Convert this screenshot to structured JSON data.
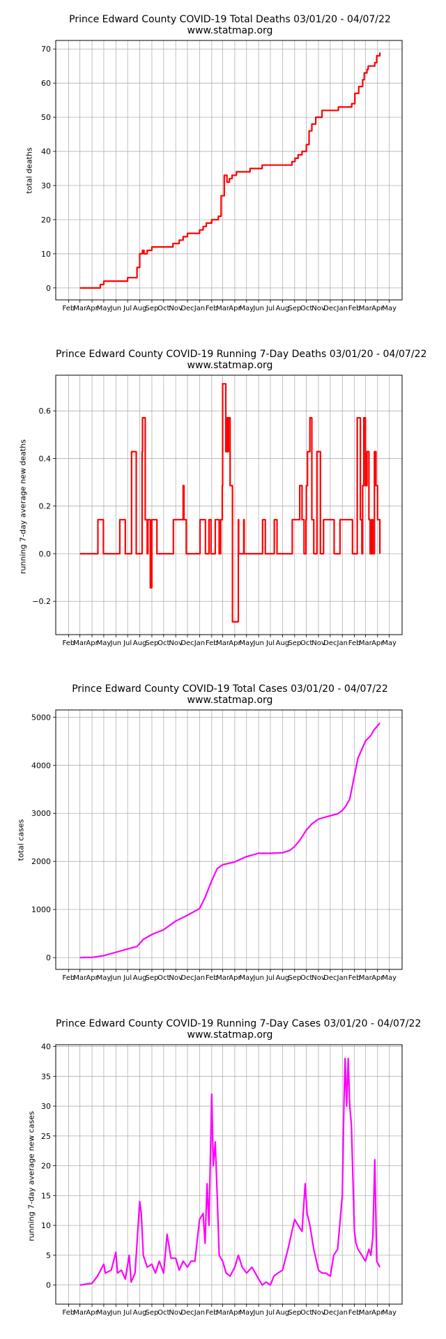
{
  "charts": [
    {
      "title": "Prince Edward County COVID-19 Total Deaths 03/01/20 - 04/07/22",
      "subtitle": "www.statmap.org",
      "ylabel": "total deaths"
    },
    {
      "title": "Prince Edward County COVID-19 Running 7-Day Deaths 03/01/20 - 04/07/22",
      "subtitle": "www.statmap.org",
      "ylabel": "running 7-day average new deaths"
    },
    {
      "title": "Prince Edward County COVID-19 Total Cases 03/01/20 - 04/07/22",
      "subtitle": "www.statmap.org",
      "ylabel": "total cases"
    },
    {
      "title": "Prince Edward County COVID-19 Running 7-Day Cases 03/01/20 - 04/07/22",
      "subtitle": "www.statmap.org",
      "ylabel": "running 7-day average new cases"
    }
  ],
  "chart_data": [
    {
      "type": "line",
      "title": "Prince Edward County COVID-19 Total Deaths 03/01/20 - 04/07/22",
      "subtitle": "www.statmap.org",
      "ylabel": "total deaths",
      "x_tick_labels": [
        "Feb",
        "Mar",
        "Apr",
        "May",
        "Jun",
        "Jul",
        "Aug",
        "Sep",
        "Oct",
        "Nov",
        "Dec",
        "Jan",
        "Feb",
        "Mar",
        "Apr",
        "May",
        "Jun",
        "Jul",
        "Aug",
        "Sep",
        "Oct",
        "Nov",
        "Dec",
        "Jan",
        "Feb",
        "Mar",
        "Apr",
        "May"
      ],
      "x_range": [
        "2020-02-01",
        "2022-05-01"
      ],
      "y_ticks": [
        0,
        10,
        20,
        30,
        40,
        50,
        60,
        70
      ],
      "ylim": [
        -3.5,
        72.5
      ],
      "grid": true,
      "color": "#ff0000",
      "series": [
        {
          "x": [
            "2020-03-01",
            "2020-04-15",
            "2020-04-22",
            "2020-05-01",
            "2020-06-10",
            "2020-07-01",
            "2020-07-25",
            "2020-08-01",
            "2020-08-08",
            "2020-08-12",
            "2020-08-20",
            "2020-09-01",
            "2020-10-25",
            "2020-11-10",
            "2020-11-20",
            "2020-12-01",
            "2021-01-01",
            "2021-01-10",
            "2021-01-18",
            "2021-02-01",
            "2021-02-18",
            "2021-02-25",
            "2021-03-05",
            "2021-03-12",
            "2021-03-18",
            "2021-03-25",
            "2021-04-05",
            "2021-04-15",
            "2021-04-25",
            "2021-05-10",
            "2021-06-10",
            "2021-07-10",
            "2021-08-25",
            "2021-09-02",
            "2021-09-10",
            "2021-09-20",
            "2021-10-01",
            "2021-10-08",
            "2021-10-15",
            "2021-10-25",
            "2021-11-10",
            "2021-12-15",
            "2021-12-22",
            "2022-01-25",
            "2022-02-02",
            "2022-02-12",
            "2022-02-22",
            "2022-02-26",
            "2022-03-05",
            "2022-03-08",
            "2022-03-12",
            "2022-03-25",
            "2022-03-30",
            "2022-04-07"
          ],
          "y": [
            0,
            0,
            1,
            2,
            2,
            3,
            6,
            10,
            11,
            10,
            11,
            12,
            13,
            14,
            15,
            16,
            17,
            18,
            19,
            20,
            21,
            27,
            33,
            31,
            32,
            33,
            34,
            34,
            34,
            35,
            36,
            36,
            37,
            38,
            39,
            40,
            42,
            46,
            48,
            50,
            52,
            52,
            53,
            54,
            57,
            59,
            61,
            63,
            64,
            65,
            65,
            66,
            68,
            69
          ]
        }
      ]
    },
    {
      "type": "line",
      "title": "Prince Edward County COVID-19 Running 7-Day Deaths 03/01/20 - 04/07/22",
      "subtitle": "www.statmap.org",
      "ylabel": "running 7-day average new deaths",
      "x_tick_labels": [
        "Feb",
        "Mar",
        "Apr",
        "May",
        "Jun",
        "Jul",
        "Aug",
        "Sep",
        "Oct",
        "Nov",
        "Dec",
        "Jan",
        "Feb",
        "Mar",
        "Apr",
        "May",
        "Jun",
        "Jul",
        "Aug",
        "Sep",
        "Oct",
        "Nov",
        "Dec",
        "Jan",
        "Feb",
        "Mar",
        "Apr",
        "May"
      ],
      "x_range": [
        "2020-02-01",
        "2022-05-01"
      ],
      "y_ticks": [
        -0.2,
        0.0,
        0.2,
        0.4,
        0.6
      ],
      "y_tick_labels": [
        "−0.2",
        "0.0",
        "0.2",
        "0.4",
        "0.6"
      ],
      "ylim": [
        -0.34,
        0.75
      ],
      "grid": true,
      "color": "#ff0000",
      "series": [
        {
          "x": [
            "2020-03-01",
            "2020-04-15",
            "2020-04-16",
            "2020-04-29",
            "2020-04-30",
            "2020-06-10",
            "2020-06-11",
            "2020-06-24",
            "2020-06-25",
            "2020-07-10",
            "2020-07-11",
            "2020-07-22",
            "2020-07-23",
            "2020-08-05",
            "2020-08-07",
            "2020-08-08",
            "2020-08-13",
            "2020-08-15",
            "2020-08-20",
            "2020-08-22",
            "2020-08-28",
            "2020-09-01",
            "2020-09-10",
            "2020-09-14",
            "2020-09-22",
            "2020-10-25",
            "2020-10-26",
            "2020-11-05",
            "2020-11-15",
            "2020-11-20",
            "2020-11-22",
            "2020-11-28",
            "2020-12-01",
            "2021-01-01",
            "2021-01-02",
            "2021-01-15",
            "2021-01-16",
            "2021-01-25",
            "2021-01-30",
            "2021-02-10",
            "2021-02-20",
            "2021-02-24",
            "2021-02-28",
            "2021-03-01",
            "2021-03-08",
            "2021-03-09",
            "2021-03-10",
            "2021-03-13",
            "2021-03-16",
            "2021-03-20",
            "2021-03-26",
            "2021-03-27",
            "2021-04-10",
            "2021-04-11",
            "2021-04-24",
            "2021-04-25",
            "2021-06-10",
            "2021-06-11",
            "2021-06-18",
            "2021-07-10",
            "2021-07-11",
            "2021-07-18",
            "2021-08-25",
            "2021-08-26",
            "2021-09-10",
            "2021-09-14",
            "2021-09-20",
            "2021-09-25",
            "2021-09-30",
            "2021-10-01",
            "2021-10-04",
            "2021-10-10",
            "2021-10-15",
            "2021-10-20",
            "2021-10-28",
            "2021-11-01",
            "2021-11-06",
            "2021-11-14",
            "2021-12-10",
            "2021-12-11",
            "2021-12-25",
            "2021-12-26",
            "2022-01-25",
            "2022-01-27",
            "2022-02-05",
            "2022-02-08",
            "2022-02-13",
            "2022-02-16",
            "2022-02-20",
            "2022-02-22",
            "2022-02-25",
            "2022-03-01",
            "2022-03-05",
            "2022-03-10",
            "2022-03-13",
            "2022-03-17",
            "2022-03-20",
            "2022-03-24",
            "2022-03-28",
            "2022-04-01",
            "2022-04-07"
          ],
          "y": [
            0,
            0,
            0.143,
            0.143,
            0,
            0,
            0.143,
            0.143,
            0,
            0,
            0.429,
            0.429,
            0,
            0,
            0.429,
            0.571,
            0.571,
            0.143,
            0,
            0.143,
            -0.143,
            0.143,
            0.143,
            0,
            0,
            0,
            0.143,
            0.143,
            0.143,
            0.286,
            0.143,
            0,
            0,
            0,
            0.143,
            0.143,
            0,
            0.143,
            0,
            0.143,
            0,
            0.143,
            0.286,
            0.714,
            0.714,
            0.429,
            0.571,
            0.429,
            0.571,
            0.286,
            -0.286,
            -0.286,
            0.143,
            0,
            0.143,
            0,
            0,
            0.143,
            0,
            0,
            0.143,
            0,
            0,
            0.143,
            0.143,
            0.286,
            0.143,
            0,
            0.143,
            0.286,
            0.429,
            0.571,
            0.143,
            0,
            0.429,
            0.429,
            0,
            0.143,
            0.143,
            0,
            0,
            0.143,
            0.143,
            0,
            0,
            0.571,
            0.571,
            0.143,
            0,
            0.286,
            0.571,
            0.286,
            0.429,
            0.143,
            0,
            0.143,
            0,
            0.429,
            0.286,
            0.143,
            0
          ]
        }
      ]
    },
    {
      "type": "line",
      "title": "Prince Edward County COVID-19 Total Cases 03/01/20 - 04/07/22",
      "subtitle": "www.statmap.org",
      "ylabel": "total cases",
      "x_tick_labels": [
        "Feb",
        "Mar",
        "Apr",
        "May",
        "Jun",
        "Jul",
        "Aug",
        "Sep",
        "Oct",
        "Nov",
        "Dec",
        "Jan",
        "Feb",
        "Mar",
        "Apr",
        "May",
        "Jun",
        "Jul",
        "Aug",
        "Sep",
        "Oct",
        "Nov",
        "Dec",
        "Jan",
        "Feb",
        "Mar",
        "Apr",
        "May"
      ],
      "x_range": [
        "2020-02-01",
        "2022-05-01"
      ],
      "y_ticks": [
        0,
        1000,
        2000,
        3000,
        4000,
        5000
      ],
      "ylim": [
        -245,
        5150
      ],
      "grid": true,
      "color": "#ff00ff",
      "series": [
        {
          "x": [
            "2020-03-01",
            "2020-04-01",
            "2020-05-01",
            "2020-06-01",
            "2020-07-01",
            "2020-07-25",
            "2020-08-10",
            "2020-09-01",
            "2020-10-01",
            "2020-11-01",
            "2020-12-01",
            "2021-01-01",
            "2021-01-15",
            "2021-02-01",
            "2021-02-15",
            "2021-03-01",
            "2021-04-01",
            "2021-05-01",
            "2021-06-01",
            "2021-07-01",
            "2021-08-01",
            "2021-08-20",
            "2021-09-01",
            "2021-09-15",
            "2021-10-01",
            "2021-10-15",
            "2021-11-01",
            "2021-12-01",
            "2021-12-20",
            "2022-01-01",
            "2022-01-10",
            "2022-01-20",
            "2022-01-31",
            "2022-02-10",
            "2022-03-01",
            "2022-03-15",
            "2022-03-22",
            "2022-04-07"
          ],
          "y": [
            0,
            5,
            40,
            110,
            180,
            230,
            380,
            480,
            580,
            760,
            880,
            1020,
            1250,
            1600,
            1850,
            1930,
            1990,
            2100,
            2170,
            2170,
            2180,
            2230,
            2310,
            2450,
            2650,
            2780,
            2880,
            2950,
            2990,
            3060,
            3150,
            3300,
            3750,
            4150,
            4500,
            4620,
            4720,
            4880
          ]
        }
      ]
    },
    {
      "type": "line",
      "title": "Prince Edward County COVID-19 Running 7-Day Cases 03/01/20 - 04/07/22",
      "subtitle": "www.statmap.org",
      "ylabel": "running 7-day average new cases",
      "x_tick_labels": [
        "Feb",
        "Mar",
        "Apr",
        "May",
        "Jun",
        "Jul",
        "Aug",
        "Sep",
        "Oct",
        "Nov",
        "Dec",
        "Jan",
        "Feb",
        "Mar",
        "Apr",
        "May",
        "Jun",
        "Jul",
        "Aug",
        "Sep",
        "Oct",
        "Nov",
        "Dec",
        "Jan",
        "Feb",
        "Mar",
        "Apr",
        "May"
      ],
      "x_range": [
        "2020-02-01",
        "2022-05-01"
      ],
      "y_ticks": [
        0,
        5,
        10,
        15,
        20,
        25,
        30,
        35,
        40
      ],
      "ylim": [
        -3.2,
        40.3
      ],
      "grid": true,
      "color": "#ff00ff",
      "series": [
        {
          "x": [
            "2020-03-01",
            "2020-04-01",
            "2020-04-15",
            "2020-05-01",
            "2020-05-05",
            "2020-05-20",
            "2020-06-01",
            "2020-06-05",
            "2020-06-15",
            "2020-06-25",
            "2020-07-05",
            "2020-07-10",
            "2020-07-20",
            "2020-08-01",
            "2020-08-05",
            "2020-08-10",
            "2020-08-20",
            "2020-09-01",
            "2020-09-10",
            "2020-09-20",
            "2020-10-01",
            "2020-10-10",
            "2020-10-20",
            "2020-11-01",
            "2020-11-10",
            "2020-11-20",
            "2020-12-01",
            "2020-12-10",
            "2020-12-20",
            "2021-01-01",
            "2021-01-10",
            "2021-01-15",
            "2021-01-20",
            "2021-01-25",
            "2021-02-01",
            "2021-02-05",
            "2021-02-10",
            "2021-02-15",
            "2021-02-20",
            "2021-03-01",
            "2021-03-10",
            "2021-03-20",
            "2021-04-01",
            "2021-04-10",
            "2021-04-20",
            "2021-05-01",
            "2021-05-15",
            "2021-06-01",
            "2021-06-10",
            "2021-06-20",
            "2021-07-01",
            "2021-07-10",
            "2021-07-20",
            "2021-08-01",
            "2021-08-15",
            "2021-09-01",
            "2021-09-10",
            "2021-09-20",
            "2021-09-28",
            "2021-10-03",
            "2021-10-10",
            "2021-10-20",
            "2021-11-01",
            "2021-11-10",
            "2021-11-20",
            "2021-12-01",
            "2021-12-10",
            "2021-12-20",
            "2022-01-01",
            "2022-01-05",
            "2022-01-08",
            "2022-01-12",
            "2022-01-16",
            "2022-01-20",
            "2022-01-24",
            "2022-01-28",
            "2022-02-01",
            "2022-02-05",
            "2022-02-10",
            "2022-02-20",
            "2022-03-01",
            "2022-03-10",
            "2022-03-15",
            "2022-03-20",
            "2022-03-25",
            "2022-03-30",
            "2022-04-03",
            "2022-04-07"
          ],
          "y": [
            0,
            0.3,
            1.5,
            3.5,
            2,
            2.5,
            5.5,
            2,
            2.5,
            1,
            5,
            0.5,
            2,
            14,
            12,
            5,
            3,
            3.5,
            2,
            4,
            2,
            8.5,
            4.5,
            4.5,
            2.5,
            4,
            3,
            4,
            4,
            11,
            12,
            7,
            17,
            10,
            32,
            20,
            24,
            15,
            5,
            4,
            2,
            1.5,
            3,
            5,
            3,
            2,
            3,
            1,
            0,
            0.5,
            0,
            1.5,
            2,
            2.5,
            6,
            11,
            10,
            9,
            17,
            12,
            10,
            6,
            2.5,
            2,
            2,
            1.5,
            5,
            6,
            15,
            30,
            38,
            30,
            38,
            30,
            27,
            18,
            9,
            7,
            6,
            5,
            4,
            6,
            5,
            8,
            21,
            4,
            3.5,
            3
          ]
        }
      ]
    }
  ]
}
